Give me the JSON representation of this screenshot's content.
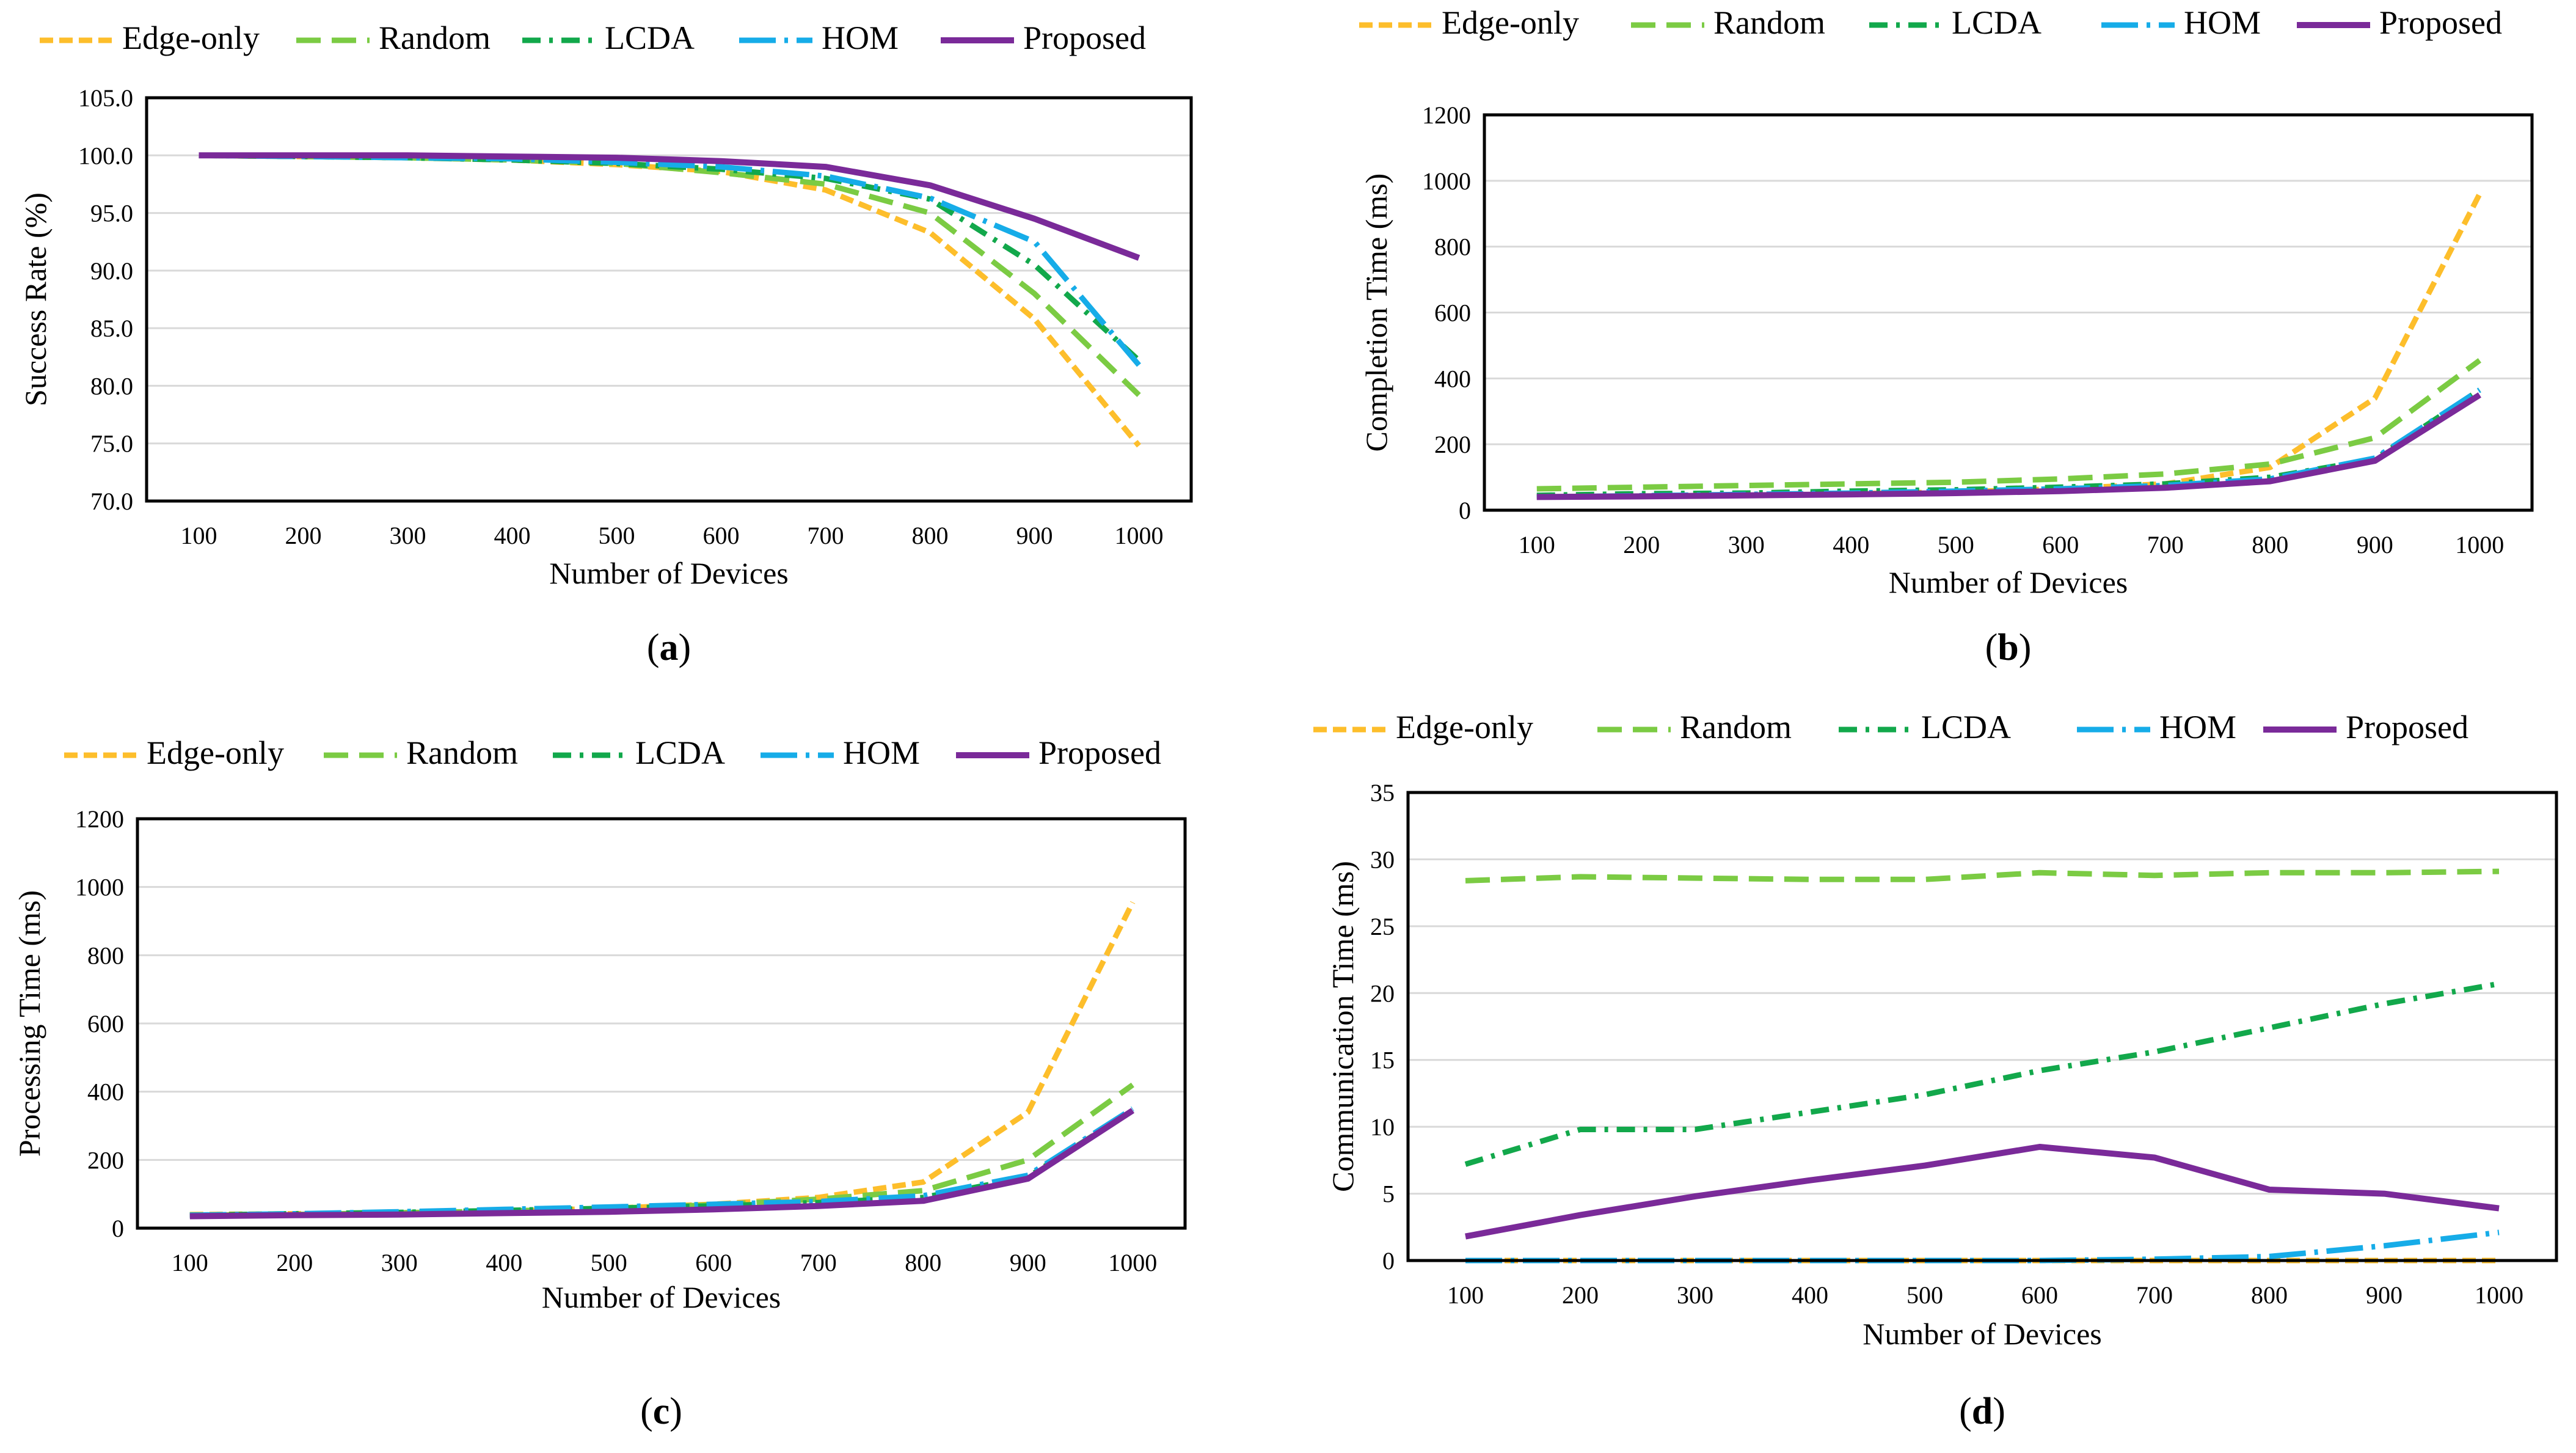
{
  "figure": {
    "colors": {
      "edge_only": "#FDBE2B",
      "random": "#7BCB43",
      "lcda": "#12A84B",
      "hom": "#16ACE8",
      "proposed": "#7A2A99",
      "grid": "#d9d9d9",
      "frame": "#000000"
    }
  },
  "chart_data": [
    {
      "id": "a",
      "type": "line",
      "panel_label": "(a)",
      "panel_letter": "a",
      "xlabel": "Number of Devices",
      "ylabel": "Success Rate (%)",
      "x": [
        100,
        200,
        300,
        400,
        500,
        600,
        700,
        800,
        900,
        1000
      ],
      "ylim": [
        70.0,
        105.0
      ],
      "yticks": [
        "70.0",
        "75.0",
        "80.0",
        "85.0",
        "90.0",
        "95.0",
        "100.0",
        "105.0"
      ],
      "ytick_values": [
        70,
        75,
        80,
        85,
        90,
        95,
        100,
        105
      ],
      "grid": true,
      "legend": "top",
      "series": [
        {
          "name": "Edge-only",
          "key": "edge_only",
          "values": [
            100.0,
            99.9,
            99.8,
            99.6,
            99.2,
            98.6,
            97.0,
            93.3,
            85.8,
            74.8
          ]
        },
        {
          "name": "Random",
          "key": "random",
          "values": [
            100.0,
            99.9,
            99.8,
            99.6,
            99.3,
            98.5,
            97.5,
            95.0,
            88.0,
            79.2
          ]
        },
        {
          "name": "LCDA",
          "key": "lcda",
          "values": [
            100.0,
            99.9,
            99.8,
            99.6,
            99.3,
            98.8,
            98.0,
            96.2,
            90.5,
            82.2
          ]
        },
        {
          "name": "HOM",
          "key": "hom",
          "values": [
            100.0,
            99.9,
            99.8,
            99.7,
            99.4,
            99.0,
            98.2,
            96.3,
            92.5,
            81.8
          ]
        },
        {
          "name": "Proposed",
          "key": "proposed",
          "values": [
            100.0,
            100.0,
            100.0,
            99.9,
            99.8,
            99.5,
            99.0,
            97.4,
            94.5,
            91.1
          ]
        }
      ]
    },
    {
      "id": "b",
      "type": "line",
      "panel_label": "(b)",
      "panel_letter": "b",
      "xlabel": "Number of Devices",
      "ylabel": "Completion Time (ms)",
      "x": [
        100,
        200,
        300,
        400,
        500,
        600,
        700,
        800,
        900,
        1000
      ],
      "ylim": [
        0,
        1200
      ],
      "yticks": [
        "0",
        "200",
        "400",
        "600",
        "800",
        "1000",
        "1200"
      ],
      "ytick_values": [
        0,
        200,
        400,
        600,
        800,
        1000,
        1200
      ],
      "grid": true,
      "legend": "top",
      "series": [
        {
          "name": "Edge-only",
          "key": "edge_only",
          "values": [
            40,
            42,
            45,
            50,
            55,
            65,
            80,
            130,
            340,
            960
          ]
        },
        {
          "name": "Random",
          "key": "random",
          "values": [
            65,
            70,
            75,
            80,
            85,
            95,
            110,
            140,
            220,
            455
          ]
        },
        {
          "name": "LCDA",
          "key": "lcda",
          "values": [
            45,
            50,
            52,
            58,
            62,
            70,
            80,
            100,
            155,
            365
          ]
        },
        {
          "name": "HOM",
          "key": "hom",
          "values": [
            40,
            44,
            48,
            52,
            58,
            65,
            75,
            95,
            158,
            365
          ]
        },
        {
          "name": "Proposed",
          "key": "proposed",
          "values": [
            40,
            42,
            45,
            48,
            52,
            58,
            68,
            88,
            150,
            350
          ]
        }
      ]
    },
    {
      "id": "c",
      "type": "line",
      "panel_label": "(c)",
      "panel_letter": "c",
      "xlabel": "Number of Devices",
      "ylabel": "Processing Time (ms)",
      "x": [
        100,
        200,
        300,
        400,
        500,
        600,
        700,
        800,
        900,
        1000
      ],
      "ylim": [
        0,
        1200
      ],
      "yticks": [
        "0",
        "200",
        "400",
        "600",
        "800",
        "1000",
        "1200"
      ],
      "ytick_values": [
        0,
        200,
        400,
        600,
        800,
        1000,
        1200
      ],
      "grid": true,
      "legend": "top",
      "series": [
        {
          "name": "Edge-only",
          "key": "edge_only",
          "values": [
            40,
            42,
            45,
            50,
            58,
            70,
            90,
            135,
            340,
            955
          ]
        },
        {
          "name": "Random",
          "key": "random",
          "values": [
            38,
            40,
            45,
            50,
            58,
            68,
            85,
            110,
            200,
            420
          ]
        },
        {
          "name": "LCDA",
          "key": "lcda",
          "values": [
            38,
            42,
            46,
            52,
            58,
            65,
            75,
            90,
            150,
            345
          ]
        },
        {
          "name": "HOM",
          "key": "hom",
          "values": [
            38,
            42,
            48,
            55,
            62,
            70,
            78,
            95,
            155,
            350
          ]
        },
        {
          "name": "Proposed",
          "key": "proposed",
          "values": [
            35,
            38,
            40,
            44,
            48,
            55,
            65,
            80,
            145,
            345
          ]
        }
      ]
    },
    {
      "id": "d",
      "type": "line",
      "panel_label": "(d)",
      "panel_letter": "d",
      "xlabel": "Number of Devices",
      "ylabel": "Communication Time (ms)",
      "x": [
        100,
        200,
        300,
        400,
        500,
        600,
        700,
        800,
        900,
        1000
      ],
      "ylim": [
        0,
        35
      ],
      "yticks": [
        "0",
        "5",
        "10",
        "15",
        "20",
        "25",
        "30",
        "35"
      ],
      "ytick_values": [
        0,
        5,
        10,
        15,
        20,
        25,
        30,
        35
      ],
      "grid": true,
      "legend": "top",
      "series": [
        {
          "name": "Edge-only",
          "key": "edge_only",
          "values": [
            0,
            0,
            0,
            0,
            0,
            0,
            0,
            0,
            0,
            0
          ]
        },
        {
          "name": "Random",
          "key": "random",
          "values": [
            28.4,
            28.7,
            28.6,
            28.5,
            28.5,
            29.0,
            28.8,
            29.0,
            29.0,
            29.1
          ]
        },
        {
          "name": "LCDA",
          "key": "lcda",
          "values": [
            7.2,
            9.8,
            9.8,
            11.1,
            12.4,
            14.2,
            15.6,
            17.4,
            19.2,
            20.7
          ]
        },
        {
          "name": "HOM",
          "key": "hom",
          "values": [
            0,
            0,
            0,
            0,
            0,
            0,
            0.1,
            0.3,
            1.1,
            2.1
          ]
        },
        {
          "name": "Proposed",
          "key": "proposed",
          "values": [
            1.8,
            3.4,
            4.8,
            6.0,
            7.1,
            8.5,
            7.7,
            5.3,
            5.0,
            3.9
          ]
        }
      ]
    }
  ]
}
